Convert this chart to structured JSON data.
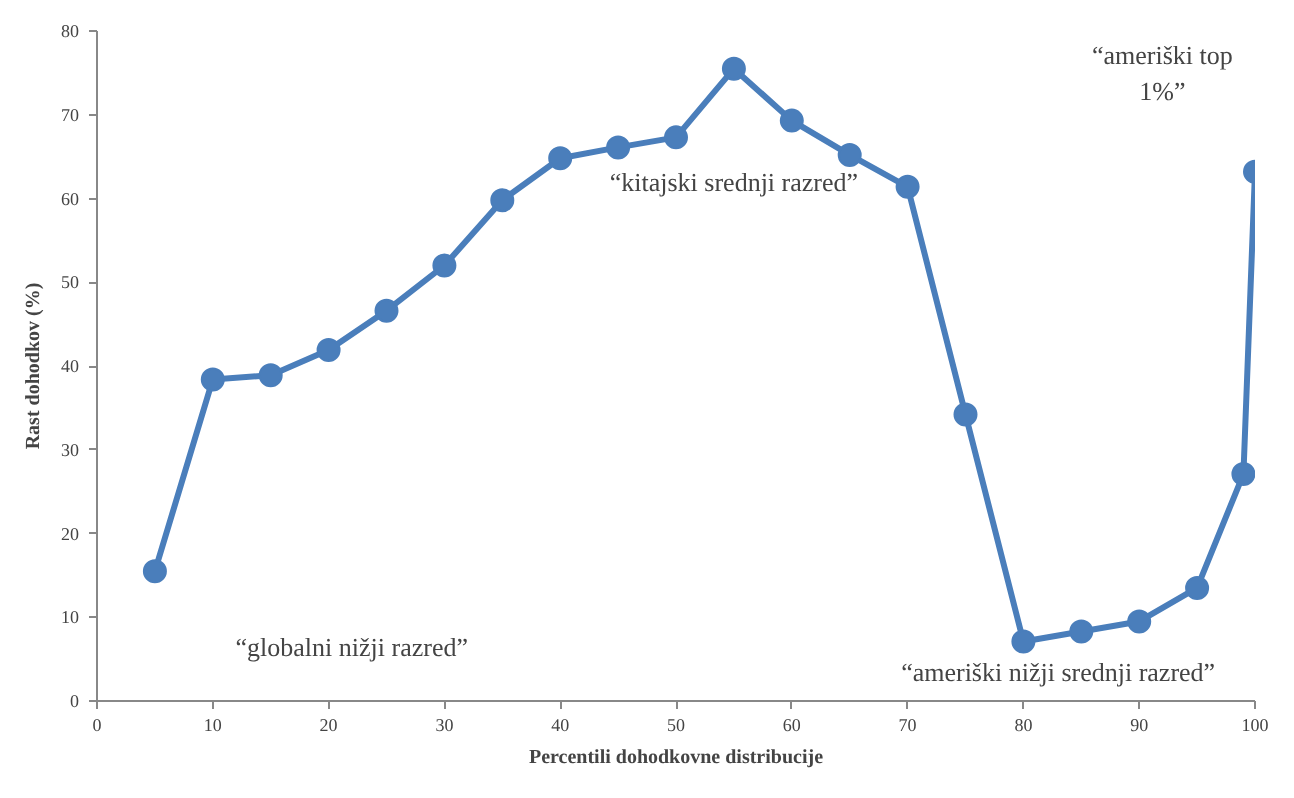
{
  "chart_data": {
    "type": "line",
    "xlabel": "Percentili dohodkovne distribucije",
    "ylabel": "Rast dohodkov (%)",
    "x": [
      5,
      10,
      15,
      20,
      25,
      30,
      35,
      40,
      45,
      50,
      55,
      60,
      65,
      70,
      75,
      80,
      85,
      90,
      95,
      99,
      100
    ],
    "series": [
      {
        "color": "#4a7ebb",
        "values": [
          15.5,
          38.4,
          38.9,
          41.9,
          46.6,
          52,
          59.8,
          64.8,
          66.1,
          67.3,
          75.5,
          69.3,
          65.2,
          61.4,
          34.2,
          7.1,
          8.3,
          9.5,
          13.5,
          27.1,
          63.2
        ]
      }
    ],
    "xlim": [
      0,
      100
    ],
    "ylim": [
      0,
      80
    ],
    "xticks": [
      0,
      10,
      20,
      30,
      40,
      50,
      60,
      70,
      80,
      90,
      100
    ],
    "yticks": [
      0,
      10,
      20,
      30,
      40,
      50,
      60,
      70,
      80
    ],
    "grid": false,
    "marker": "circle",
    "line_style": "solid",
    "annotations": [
      "“globalni nižji razred”",
      "“kitajski srednji razred”",
      "“ameriški nižji srednji razred”",
      "“ameriški top\n1%”"
    ]
  }
}
